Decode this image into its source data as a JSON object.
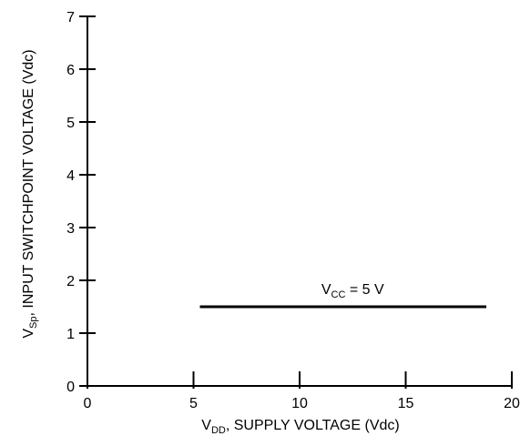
{
  "chart_data": {
    "type": "line",
    "x_axis": {
      "range": [
        0,
        20
      ],
      "ticks": [
        0,
        5,
        10,
        15,
        20
      ],
      "tick_labels": [
        "0",
        "5",
        "10",
        "15",
        "20"
      ],
      "label_main": "V",
      "label_sub": "DD",
      "label_rest": ", SUPPLY VOLTAGE (Vdc)"
    },
    "y_axis": {
      "range": [
        0,
        7
      ],
      "ticks": [
        0,
        1,
        2,
        3,
        4,
        5,
        6,
        7
      ],
      "tick_labels": [
        "0",
        "1",
        "2",
        "3",
        "4",
        "5",
        "6",
        "7"
      ],
      "label_main": "V",
      "label_sub": "Sp",
      "label_rest": ", INPUT SWITCHPOINT VOLTAGE (Vdc)"
    },
    "grid": false,
    "series": [
      {
        "x": [
          5.3,
          18.8
        ],
        "y": [
          1.5,
          1.5
        ],
        "color": "#000000"
      }
    ],
    "annotations": [
      {
        "main": "V",
        "sub": "CC",
        "rest": " = 5 V",
        "x": 12.5,
        "y": 1.5
      }
    ]
  }
}
